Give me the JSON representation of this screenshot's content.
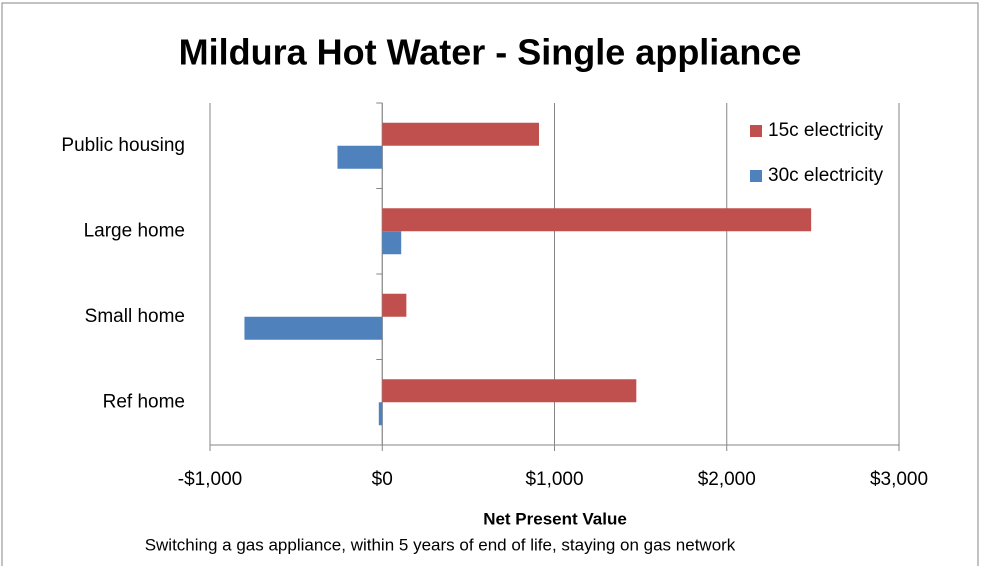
{
  "chart_data": {
    "type": "bar",
    "orientation": "horizontal",
    "title": "Mildura Hot Water  - Single appliance",
    "xlabel": "Net Present Value",
    "caption": "Switching a gas appliance, within 5 years of end of life, staying on gas network",
    "categories": [
      "Ref home",
      "Small home",
      "Large home",
      "Public housing"
    ],
    "series": [
      {
        "name": "15c electricity",
        "color": "#c0504d",
        "values": [
          1475,
          140,
          2490,
          910
        ]
      },
      {
        "name": "30c electricity",
        "color": "#4f81bd",
        "values": [
          -20,
          -800,
          110,
          -260
        ]
      }
    ],
    "xlim": [
      -1000,
      3000
    ],
    "xticks": [
      {
        "value": -1000,
        "label": "-$1,000"
      },
      {
        "value": 0,
        "label": "$0"
      },
      {
        "value": 1000,
        "label": "$1,000"
      },
      {
        "value": 2000,
        "label": "$2,000"
      },
      {
        "value": 3000,
        "label": "$3,000"
      }
    ],
    "grid": true,
    "legend": "top-right"
  }
}
